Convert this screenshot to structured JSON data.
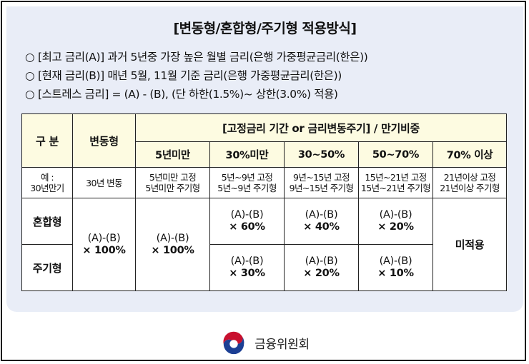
{
  "title": "[변동형/혼합형/주기형 적용방식]",
  "bullets": [
    {
      "mark": "○",
      "text": "[최고 금리(A)] 과거 5년중 가장 높은 월별 금리(은행 가중평균금리(한은))"
    },
    {
      "mark": "○",
      "text": "[현재 금리(B)] 매년 5월, 11월 기준 금리(은행 가중평균금리(한은))"
    },
    {
      "mark": "○",
      "text": "[스트레스 금리] = (A) - (B), (단 하한(1.5%)~ 상한(3.0%) 적용)"
    }
  ],
  "table": {
    "head": {
      "category": "구 분",
      "variable": "변동형",
      "group": "[고정금리 기간 or 금리변동주기] / 만기비중",
      "columns": [
        "5년미만",
        "30%미만",
        "30~50%",
        "50~70%",
        "70% 이상"
      ]
    },
    "example": {
      "label_1": "예 :",
      "label_2": "30년만기",
      "variable": "30년 변동",
      "cells": [
        {
          "line1": "5년미만 고정",
          "line2": "5년미만 주기형"
        },
        {
          "line1": "5년~9년 고정",
          "line2": "5년~9년 주기형"
        },
        {
          "line1": "9년~15년 고정",
          "line2": "9년~15년 주기형"
        },
        {
          "line1": "15년~21년 고정",
          "line2": "15년~21년 주기형"
        },
        {
          "line1": "21년이상 고정",
          "line2": "21년이상 주기형"
        }
      ]
    },
    "rows": {
      "mixed_label": "혼합형",
      "periodic_label": "주기형",
      "variable_calc": {
        "formula": "(A)-(B)",
        "mult": "× 100%"
      },
      "under5_calc": {
        "formula": "(A)-(B)",
        "mult": "× 100%"
      },
      "mixed": [
        {
          "formula": "(A)-(B)",
          "mult": "× 60%"
        },
        {
          "formula": "(A)-(B)",
          "mult": "× 40%"
        },
        {
          "formula": "(A)-(B)",
          "mult": "× 20%"
        }
      ],
      "periodic": [
        {
          "formula": "(A)-(B)",
          "mult": "× 30%"
        },
        {
          "formula": "(A)-(B)",
          "mult": "× 20%"
        },
        {
          "formula": "(A)-(B)",
          "mult": "× 10%"
        }
      ],
      "not_applied": "미적용"
    }
  },
  "footer": {
    "org": "금융위원회",
    "logo_icon": "taegeuk-logo-icon",
    "colors": {
      "red": "#c8102e",
      "blue": "#1c3f94"
    }
  }
}
